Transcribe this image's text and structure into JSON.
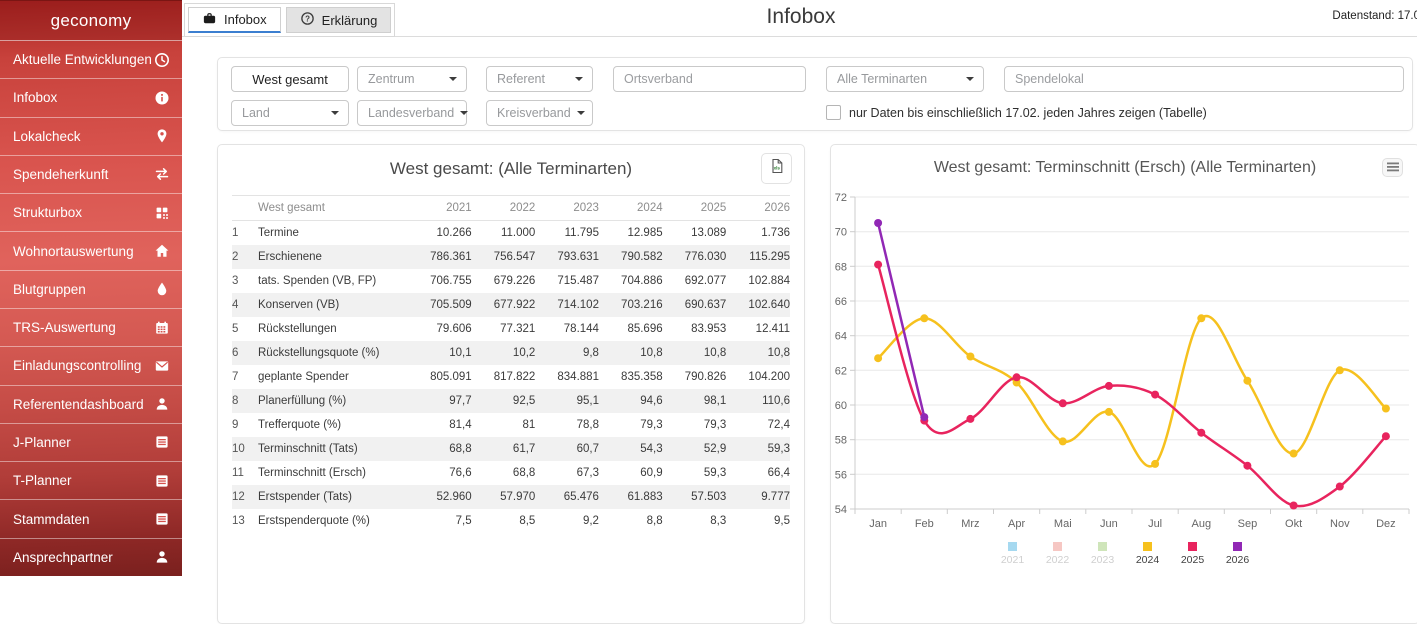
{
  "sidebar": {
    "brand": "geconomy",
    "items": [
      {
        "label": "Aktuelle Entwicklungen",
        "icon": "clock-icon"
      },
      {
        "label": "Infobox",
        "icon": "info-icon"
      },
      {
        "label": "Lokalcheck",
        "icon": "map-marker-icon"
      },
      {
        "label": "Spendeherkunft",
        "icon": "transfer-arrows-icon"
      },
      {
        "label": "Strukturbox",
        "icon": "structure-grid-icon"
      },
      {
        "label": "Wohnortauswertung",
        "icon": "home-icon"
      },
      {
        "label": "Blutgruppen",
        "icon": "blood-drop-icon"
      },
      {
        "label": "TRS-Auswertung",
        "icon": "calendar-icon"
      },
      {
        "label": "Einladungscontrolling",
        "icon": "envelope-icon"
      },
      {
        "label": "Referentendashboard",
        "icon": "person-icon"
      },
      {
        "label": "J-Planner",
        "icon": "planner-icon"
      },
      {
        "label": "T-Planner",
        "icon": "planner-icon"
      },
      {
        "label": "Stammdaten",
        "icon": "planner-icon"
      },
      {
        "label": "Ansprechpartner",
        "icon": "person-icon"
      }
    ]
  },
  "topbar": {
    "tabs": [
      {
        "label": "Infobox",
        "icon": "briefcase-icon",
        "active": true
      },
      {
        "label": "Erklärung",
        "icon": "question-circle-icon",
        "active": false
      }
    ],
    "title": "Infobox",
    "datenstand": "Datenstand: 17.0"
  },
  "filters": {
    "region": "West gesamt",
    "zentrum": "Zentrum",
    "referent": "Referent",
    "ortsverband_placeholder": "Ortsverband",
    "terminarten": "Alle Terminarten",
    "spendelokal_placeholder": "Spendelokal",
    "land": "Land",
    "landesverband": "Landesverband",
    "kreisverband": "Kreisverband",
    "checkbox_label": "nur Daten bis einschließlich 17.02. jeden Jahres zeigen (Tabelle)",
    "checkbox_checked": false
  },
  "table_card": {
    "title": "West gesamt: (Alle Terminarten)",
    "export_icon": "excel-export-icon",
    "header": [
      "West gesamt",
      "2021",
      "2022",
      "2023",
      "2024",
      "2025",
      "2026"
    ],
    "rows": [
      {
        "num": "1",
        "label": "Termine",
        "values": [
          "10.266",
          "11.000",
          "11.795",
          "12.985",
          "13.089",
          "1.736"
        ]
      },
      {
        "num": "2",
        "label": "Erschienene",
        "values": [
          "786.361",
          "756.547",
          "793.631",
          "790.582",
          "776.030",
          "115.295"
        ]
      },
      {
        "num": "3",
        "label": "tats. Spenden (VB, FP)",
        "values": [
          "706.755",
          "679.226",
          "715.487",
          "704.886",
          "692.077",
          "102.884"
        ]
      },
      {
        "num": "4",
        "label": "Konserven (VB)",
        "values": [
          "705.509",
          "677.922",
          "714.102",
          "703.216",
          "690.637",
          "102.640"
        ]
      },
      {
        "num": "5",
        "label": "Rückstellungen",
        "values": [
          "79.606",
          "77.321",
          "78.144",
          "85.696",
          "83.953",
          "12.411"
        ]
      },
      {
        "num": "6",
        "label": "Rückstellungsquote (%)",
        "values": [
          "10,1",
          "10,2",
          "9,8",
          "10,8",
          "10,8",
          "10,8"
        ]
      },
      {
        "num": "7",
        "label": "geplante Spender",
        "values": [
          "805.091",
          "817.822",
          "834.881",
          "835.358",
          "790.826",
          "104.200"
        ]
      },
      {
        "num": "8",
        "label": "Planerfüllung (%)",
        "values": [
          "97,7",
          "92,5",
          "95,1",
          "94,6",
          "98,1",
          "110,6"
        ]
      },
      {
        "num": "9",
        "label": "Trefferquote (%)",
        "values": [
          "81,4",
          "81",
          "78,8",
          "79,3",
          "79,3",
          "72,4"
        ]
      },
      {
        "num": "10",
        "label": "Terminschnitt (Tats)",
        "values": [
          "68,8",
          "61,7",
          "60,7",
          "54,3",
          "52,9",
          "59,3"
        ]
      },
      {
        "num": "11",
        "label": "Terminschnitt (Ersch)",
        "values": [
          "76,6",
          "68,8",
          "67,3",
          "60,9",
          "59,3",
          "66,4"
        ]
      },
      {
        "num": "12",
        "label": "Erstspender (Tats)",
        "values": [
          "52.960",
          "57.970",
          "65.476",
          "61.883",
          "57.503",
          "9.777"
        ]
      },
      {
        "num": "13",
        "label": "Erstspenderquote (%)",
        "values": [
          "7,5",
          "8,5",
          "9,2",
          "8,8",
          "8,3",
          "9,5"
        ]
      }
    ]
  },
  "chart_card": {
    "title": "West gesamt: Terminschnitt (Ersch) (Alle Terminarten)",
    "menu_icon": "hamburger-menu-icon"
  },
  "chart_data": {
    "type": "line",
    "title": "West gesamt: Terminschnitt (Ersch) (Alle Terminarten)",
    "categories": [
      "Jan",
      "Feb",
      "Mrz",
      "Apr",
      "Mai",
      "Jun",
      "Jul",
      "Aug",
      "Sep",
      "Okt",
      "Nov",
      "Dez"
    ],
    "ylim": [
      54,
      72
    ],
    "ytick_step": 2,
    "grid": true,
    "legend_position": "bottom",
    "series": [
      {
        "name": "2021",
        "color": "#a6d9f0",
        "visible": false,
        "values": []
      },
      {
        "name": "2022",
        "color": "#f6c7c3",
        "visible": false,
        "values": []
      },
      {
        "name": "2023",
        "color": "#cfe5ba",
        "visible": false,
        "values": []
      },
      {
        "name": "2024",
        "color": "#f6c11e",
        "visible": true,
        "values": [
          62.7,
          65.0,
          62.8,
          61.3,
          57.9,
          59.6,
          56.6,
          65.0,
          61.4,
          57.2,
          62.0,
          59.8
        ]
      },
      {
        "name": "2025",
        "color": "#e8245e",
        "visible": true,
        "values": [
          68.1,
          59.1,
          59.2,
          61.6,
          60.1,
          61.1,
          60.6,
          58.4,
          56.5,
          54.2,
          55.3,
          58.2
        ]
      },
      {
        "name": "2026",
        "color": "#9128b5",
        "visible": true,
        "values": [
          70.5,
          59.3
        ]
      }
    ]
  }
}
